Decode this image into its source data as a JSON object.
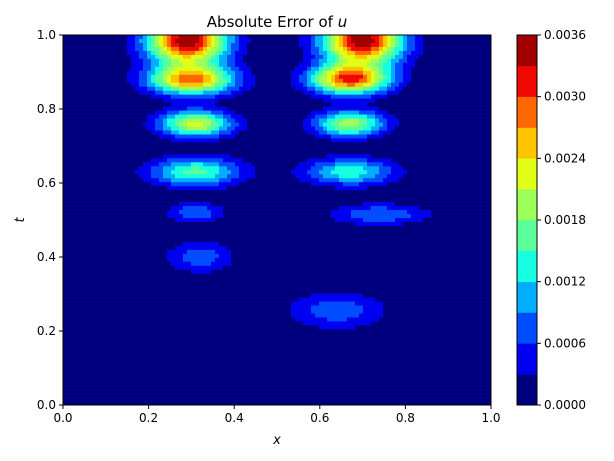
{
  "chart_data": {
    "type": "heatmap",
    "title_prefix": "Absolute Error of ",
    "title_var": "u",
    "xlabel": "x",
    "ylabel": "t",
    "xlim": [
      0.0,
      1.0
    ],
    "ylim": [
      0.0,
      1.0
    ],
    "xticks": [
      "0.0",
      "0.2",
      "0.4",
      "0.6",
      "0.8",
      "1.0"
    ],
    "yticks": [
      "0.0",
      "0.2",
      "0.4",
      "0.6",
      "0.8",
      "1.0"
    ],
    "colorbar": {
      "range": [
        0.0,
        0.0036
      ],
      "levels": 12,
      "tick_labels": [
        "0.0000",
        "0.0006",
        "0.0012",
        "0.0018",
        "0.0024",
        "0.0030",
        "0.0036"
      ],
      "colors": [
        "#00007f",
        "#0000f1",
        "#004dff",
        "#00adff",
        "#16ffe1",
        "#5aff9c",
        "#9cff5a",
        "#e1ff16",
        "#ffc400",
        "#ff6800",
        "#f10800",
        "#a20000"
      ]
    },
    "regions": [
      {
        "name": "top-left-crest",
        "x": 0.29,
        "t": 0.985,
        "sx": 0.065,
        "st": 0.045,
        "peak": 0.0036
      },
      {
        "name": "top-right-crest",
        "x": 0.7,
        "t": 0.985,
        "sx": 0.065,
        "st": 0.045,
        "peak": 0.0036
      },
      {
        "name": "band-0.88-left",
        "x": 0.3,
        "t": 0.878,
        "sx": 0.07,
        "st": 0.028,
        "peak": 0.0027
      },
      {
        "name": "band-0.88-right",
        "x": 0.67,
        "t": 0.88,
        "sx": 0.065,
        "st": 0.028,
        "peak": 0.003
      },
      {
        "name": "band-0.76-left",
        "x": 0.31,
        "t": 0.76,
        "sx": 0.06,
        "st": 0.025,
        "peak": 0.0022
      },
      {
        "name": "band-0.76-right",
        "x": 0.67,
        "t": 0.76,
        "sx": 0.058,
        "st": 0.025,
        "peak": 0.002
      },
      {
        "name": "band-0.63-left",
        "x": 0.31,
        "t": 0.63,
        "sx": 0.075,
        "st": 0.028,
        "peak": 0.0016
      },
      {
        "name": "band-0.63-right",
        "x": 0.67,
        "t": 0.63,
        "sx": 0.075,
        "st": 0.026,
        "peak": 0.0014
      },
      {
        "name": "blob-0.52-left",
        "x": 0.31,
        "t": 0.52,
        "sx": 0.045,
        "st": 0.018,
        "peak": 0.0009
      },
      {
        "name": "blob-0.52-right",
        "x": 0.74,
        "t": 0.515,
        "sx": 0.08,
        "st": 0.02,
        "peak": 0.0009
      },
      {
        "name": "blob-0.40",
        "x": 0.32,
        "t": 0.4,
        "sx": 0.055,
        "st": 0.03,
        "peak": 0.0008
      },
      {
        "name": "blob-0.25",
        "x": 0.64,
        "t": 0.255,
        "sx": 0.08,
        "st": 0.035,
        "peak": 0.0008
      }
    ]
  }
}
